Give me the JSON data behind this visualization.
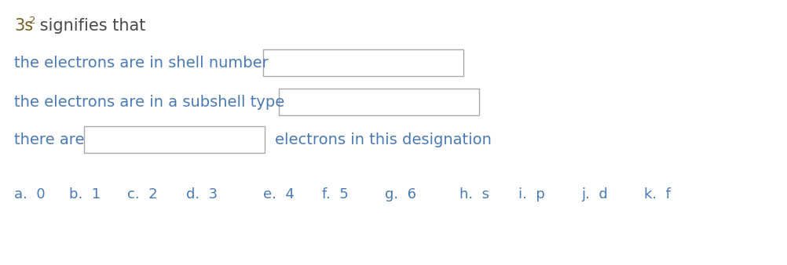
{
  "bg_color": "#ffffff",
  "text_color_main": "#5a7a3a",
  "text_color_blue": "#4a7ab5",
  "box_edge_color": "#aaaaaa",
  "title_3s": "3s",
  "title_sup": "2",
  "title_rest": " signifies that",
  "line1_label": "the electrons are in shell number",
  "line2_label": "the electrons are in a subshell type",
  "line3_prefix": "there are",
  "line3_suffix": "electrons in this designation",
  "answer_options": [
    "a.  0",
    "b.  1",
    "c.  2",
    "d.  3",
    "e.  4",
    "f.  5",
    "g.  6",
    "h.  s",
    "i.  p",
    "j.  d",
    "k.  f"
  ],
  "font_size": 14,
  "sup_font_size": 9.5
}
